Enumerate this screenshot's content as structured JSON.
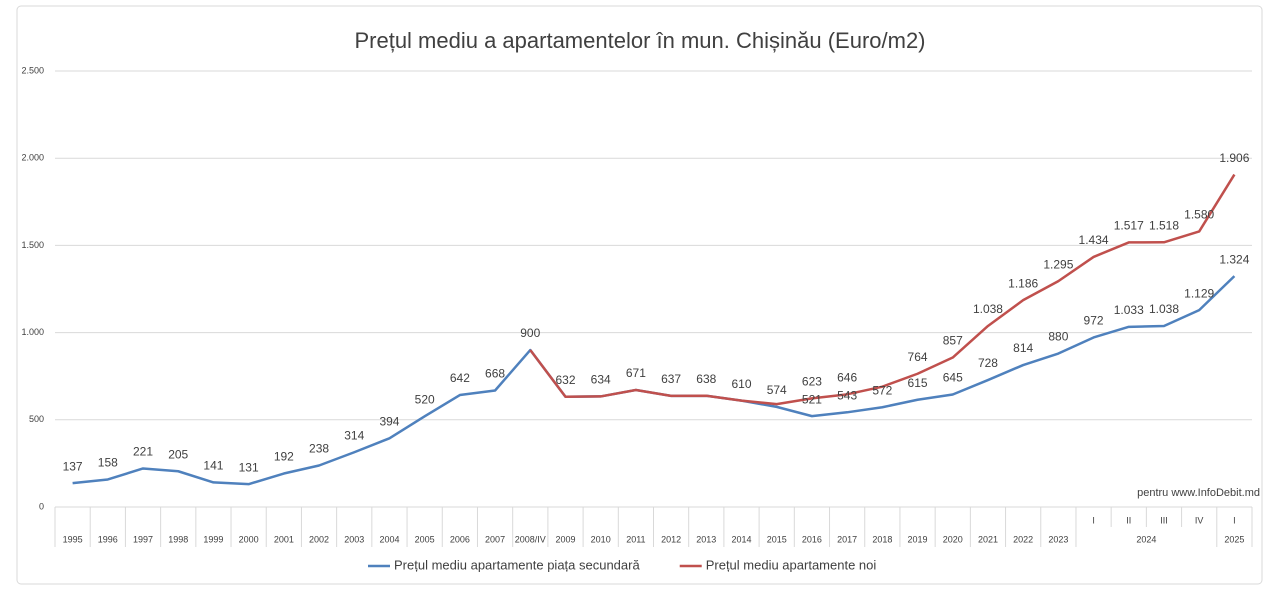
{
  "chart_data": {
    "type": "line",
    "title": "Prețul mediu a apartamentelor în mun. Chișinău (Euro/m2)",
    "categories": [
      "1995",
      "1996",
      "1997",
      "1998",
      "1999",
      "2000",
      "2001",
      "2002",
      "2003",
      "2004",
      "2005",
      "2006",
      "2007",
      "2008/IV",
      "2009",
      "2010",
      "2011",
      "2012",
      "2013",
      "2014",
      "2015",
      "2016",
      "2017",
      "2018",
      "2019",
      "2020",
      "2021",
      "2022",
      "2023",
      "I",
      "II",
      "III",
      "IV",
      "I"
    ],
    "category_groups": [
      {
        "label": "2024",
        "size": 4
      },
      {
        "label": "2025",
        "size": 1
      }
    ],
    "series": [
      {
        "name": "Prețul mediu apartamente piața secundară",
        "color": "#4f81bd",
        "values": [
          137,
          158,
          221,
          205,
          141,
          131,
          192,
          238,
          314,
          394,
          520,
          642,
          668,
          900,
          632,
          634,
          671,
          637,
          638,
          610,
          574,
          521,
          543,
          572,
          615,
          645,
          728,
          814,
          880,
          972,
          1033,
          1038,
          1129,
          1324
        ],
        "value_labels": [
          "137",
          "158",
          "221",
          "205",
          "141",
          "131",
          "192",
          "238",
          "314",
          "394",
          "520",
          "642",
          "668",
          "900",
          "632",
          "634",
          "671",
          "637",
          "638",
          "610",
          "574",
          "521",
          "543",
          "572",
          "615",
          "645",
          "728",
          "814",
          "880",
          "972",
          "1.033",
          "1.038",
          "1.129",
          "1.324"
        ]
      },
      {
        "name": "Prețul mediu apartamente noi",
        "color": "#c0504d",
        "values": [
          null,
          null,
          null,
          null,
          null,
          null,
          null,
          null,
          null,
          null,
          null,
          null,
          null,
          900,
          632,
          634,
          671,
          637,
          638,
          610,
          590,
          623,
          646,
          690,
          764,
          857,
          1038,
          1186,
          1295,
          1434,
          1517,
          1518,
          1580,
          1906
        ],
        "value_labels": [
          null,
          null,
          null,
          null,
          null,
          null,
          null,
          null,
          null,
          null,
          null,
          null,
          null,
          null,
          null,
          null,
          null,
          null,
          null,
          null,
          null,
          "623",
          "646",
          null,
          "764",
          "857",
          "1.038",
          "1.186",
          "1.295",
          "1.434",
          "1.517",
          "1.518",
          "1.580",
          "1.906"
        ]
      }
    ],
    "ylim": [
      0,
      2500
    ],
    "yticks": [
      0,
      500,
      {
        "value": 1000,
        "label": "1.000"
      },
      {
        "value": 1500,
        "label": "1.500"
      },
      {
        "value": 2000,
        "label": "2.000"
      },
      {
        "value": 2500,
        "label": "2.500"
      }
    ],
    "grid": true,
    "legend": "bottom",
    "annotation": "pentru www.InfoDebit.md"
  }
}
